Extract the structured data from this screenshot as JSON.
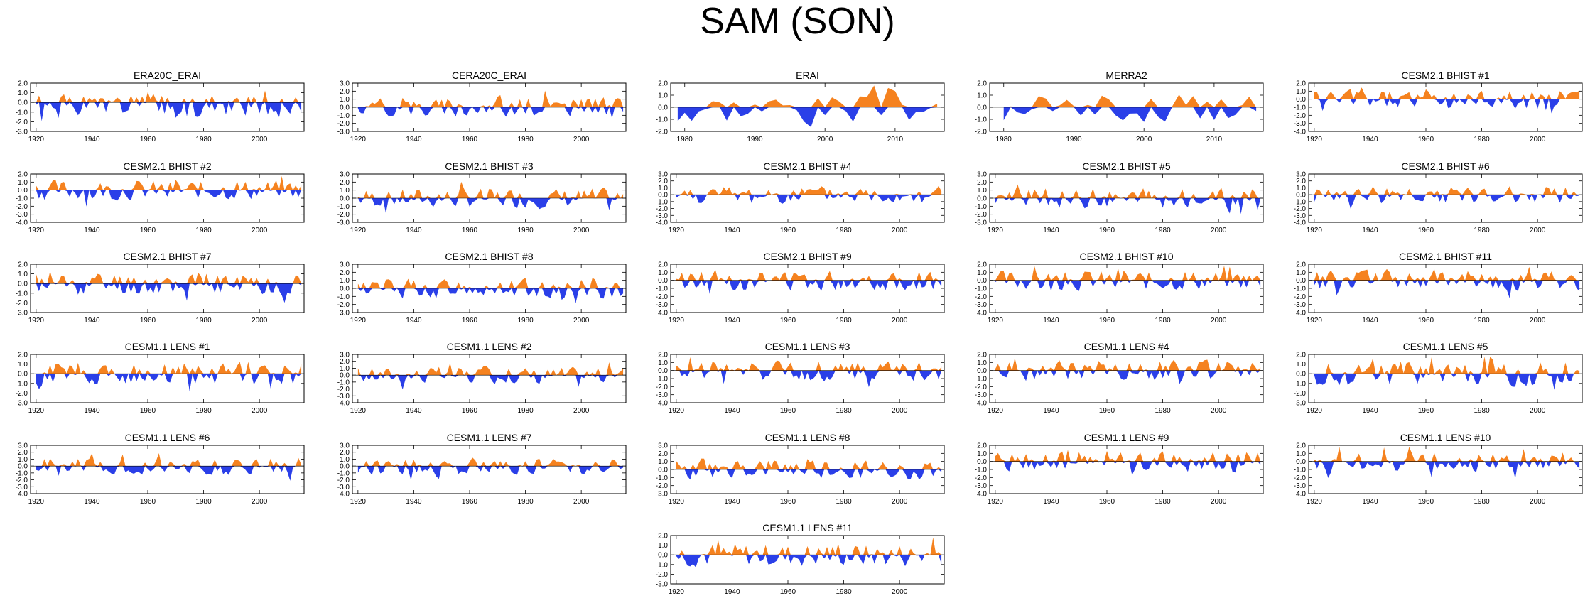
{
  "title": "SAM (SON)",
  "colors": {
    "positive": "#f5821f",
    "negative": "#2a3fe8",
    "axis": "#000000"
  },
  "chart_data": [
    {
      "type": "area",
      "title": "ERA20C_ERAI",
      "x_ticks": [
        "1920",
        "1940",
        "1960",
        "1980",
        "2000"
      ],
      "xlim": [
        1918,
        2016
      ],
      "y_ticks": [
        "2.0",
        "1.0",
        "0.0",
        "-1.0",
        "-2.0",
        "-3.0"
      ],
      "ylim": [
        -3,
        2
      ],
      "series_span": [
        1920,
        2015
      ],
      "seed": 1,
      "bias": -0.35
    },
    {
      "type": "area",
      "title": "CERA20C_ERAI",
      "x_ticks": [
        "1920",
        "1940",
        "1960",
        "1980",
        "2000"
      ],
      "xlim": [
        1918,
        2016
      ],
      "y_ticks": [
        "3.0",
        "2.0",
        "1.0",
        "0.0",
        "-1.0",
        "-2.0",
        "-3.0"
      ],
      "ylim": [
        -3,
        3
      ],
      "series_span": [
        1920,
        2015
      ],
      "seed": 2,
      "bias": 0.1
    },
    {
      "type": "area",
      "title": "ERAI",
      "x_ticks": [
        "1980",
        "1990",
        "2000",
        "2010"
      ],
      "xlim": [
        1978,
        2017
      ],
      "y_ticks": [
        "2.0",
        "1.0",
        "0.0",
        "-1.0",
        "-2.0"
      ],
      "ylim": [
        -2,
        2
      ],
      "series_span": [
        1979,
        2016
      ],
      "seed": 3,
      "bias": 0
    },
    {
      "type": "area",
      "title": "MERRA2",
      "x_ticks": [
        "1980",
        "1990",
        "2000",
        "2010"
      ],
      "xlim": [
        1978,
        2017
      ],
      "y_ticks": [
        "2.0",
        "1.0",
        "0.0",
        "-1.0",
        "-2.0"
      ],
      "ylim": [
        -2,
        2
      ],
      "series_span": [
        1980,
        2016
      ],
      "seed": 4,
      "bias": 0
    },
    {
      "type": "area",
      "title": "CESM2.1 BHIST #1",
      "x_ticks": [
        "1920",
        "1940",
        "1960",
        "1980",
        "2000"
      ],
      "xlim": [
        1918,
        2016
      ],
      "y_ticks": [
        "2.0",
        "1.0",
        "0.0",
        "-1.0",
        "-2.0",
        "-3.0",
        "-4.0"
      ],
      "ylim": [
        -4,
        2
      ],
      "series_span": [
        1920,
        2015
      ],
      "seed": 5,
      "bias": 0
    },
    {
      "type": "area",
      "title": "CESM2.1 BHIST #2",
      "x_ticks": [
        "1920",
        "1940",
        "1960",
        "1980",
        "2000"
      ],
      "xlim": [
        1918,
        2016
      ],
      "y_ticks": [
        "2.0",
        "1.0",
        "0.0",
        "-1.0",
        "-2.0",
        "-3.0",
        "-4.0"
      ],
      "ylim": [
        -4,
        2
      ],
      "series_span": [
        1920,
        2015
      ],
      "seed": 6,
      "bias": 0
    },
    {
      "type": "area",
      "title": "CESM2.1 BHIST #3",
      "x_ticks": [
        "1920",
        "1940",
        "1960",
        "1980",
        "2000"
      ],
      "xlim": [
        1918,
        2016
      ],
      "y_ticks": [
        "3.0",
        "2.0",
        "1.0",
        "0.0",
        "-1.0",
        "-2.0",
        "-3.0"
      ],
      "ylim": [
        -3,
        3
      ],
      "series_span": [
        1920,
        2015
      ],
      "seed": 7,
      "bias": 0
    },
    {
      "type": "area",
      "title": "CESM2.1 BHIST #4",
      "x_ticks": [
        "1920",
        "1940",
        "1960",
        "1980",
        "2000"
      ],
      "xlim": [
        1918,
        2016
      ],
      "y_ticks": [
        "3.0",
        "2.0",
        "1.0",
        "0.0",
        "-1.0",
        "-2.0",
        "-3.0",
        "-4.0"
      ],
      "ylim": [
        -4,
        3
      ],
      "series_span": [
        1920,
        2015
      ],
      "seed": 8,
      "bias": 0
    },
    {
      "type": "area",
      "title": "CESM2.1 BHIST #5",
      "x_ticks": [
        "1920",
        "1940",
        "1960",
        "1980",
        "2000"
      ],
      "xlim": [
        1918,
        2016
      ],
      "y_ticks": [
        "3.0",
        "2.0",
        "1.0",
        "0.0",
        "-1.0",
        "-2.0",
        "-3.0"
      ],
      "ylim": [
        -3,
        3
      ],
      "series_span": [
        1920,
        2015
      ],
      "seed": 9,
      "bias": 0
    },
    {
      "type": "area",
      "title": "CESM2.1 BHIST #6",
      "x_ticks": [
        "1920",
        "1940",
        "1960",
        "1980",
        "2000"
      ],
      "xlim": [
        1918,
        2016
      ],
      "y_ticks": [
        "3.0",
        "2.0",
        "1.0",
        "0.0",
        "-1.0",
        "-2.0",
        "-3.0",
        "-4.0"
      ],
      "ylim": [
        -4,
        3
      ],
      "series_span": [
        1920,
        2015
      ],
      "seed": 10,
      "bias": 0
    },
    {
      "type": "area",
      "title": "CESM2.1 BHIST #7",
      "x_ticks": [
        "1920",
        "1940",
        "1960",
        "1980",
        "2000"
      ],
      "xlim": [
        1918,
        2016
      ],
      "y_ticks": [
        "2.0",
        "1.0",
        "0.0",
        "-1.0",
        "-2.0",
        "-3.0"
      ],
      "ylim": [
        -3,
        2
      ],
      "series_span": [
        1920,
        2015
      ],
      "seed": 11,
      "bias": 0
    },
    {
      "type": "area",
      "title": "CESM2.1 BHIST #8",
      "x_ticks": [
        "1920",
        "1940",
        "1960",
        "1980",
        "2000"
      ],
      "xlim": [
        1918,
        2016
      ],
      "y_ticks": [
        "3.0",
        "2.0",
        "1.0",
        "0.0",
        "-1.0",
        "-2.0",
        "-3.0"
      ],
      "ylim": [
        -3,
        3
      ],
      "series_span": [
        1920,
        2015
      ],
      "seed": 12,
      "bias": 0
    },
    {
      "type": "area",
      "title": "CESM2.1 BHIST #9",
      "x_ticks": [
        "1920",
        "1940",
        "1960",
        "1980",
        "2000"
      ],
      "xlim": [
        1918,
        2016
      ],
      "y_ticks": [
        "2.0",
        "1.0",
        "0.0",
        "-1.0",
        "-2.0",
        "-3.0",
        "-4.0"
      ],
      "ylim": [
        -4,
        2
      ],
      "series_span": [
        1920,
        2015
      ],
      "seed": 13,
      "bias": 0
    },
    {
      "type": "area",
      "title": "CESM2.1 BHIST #10",
      "x_ticks": [
        "1920",
        "1940",
        "1960",
        "1980",
        "2000"
      ],
      "xlim": [
        1918,
        2016
      ],
      "y_ticks": [
        "2.0",
        "1.0",
        "0.0",
        "-1.0",
        "-2.0",
        "-3.0",
        "-4.0"
      ],
      "ylim": [
        -4,
        2
      ],
      "series_span": [
        1920,
        2015
      ],
      "seed": 14,
      "bias": 0
    },
    {
      "type": "area",
      "title": "CESM2.1 BHIST #11",
      "x_ticks": [
        "1920",
        "1940",
        "1960",
        "1980",
        "2000"
      ],
      "xlim": [
        1918,
        2016
      ],
      "y_ticks": [
        "2.0",
        "1.0",
        "0.0",
        "-1.0",
        "-2.0",
        "-3.0",
        "-4.0"
      ],
      "ylim": [
        -4,
        2
      ],
      "series_span": [
        1920,
        2015
      ],
      "seed": 15,
      "bias": 0
    },
    {
      "type": "area",
      "title": "CESM1.1 LENS #1",
      "x_ticks": [
        "1920",
        "1940",
        "1960",
        "1980",
        "2000"
      ],
      "xlim": [
        1918,
        2016
      ],
      "y_ticks": [
        "2.0",
        "1.0",
        "0.0",
        "-1.0",
        "-2.0",
        "-3.0"
      ],
      "ylim": [
        -3,
        2
      ],
      "series_span": [
        1920,
        2015
      ],
      "seed": 16,
      "bias": 0
    },
    {
      "type": "area",
      "title": "CESM1.1 LENS #2",
      "x_ticks": [
        "1920",
        "1940",
        "1960",
        "1980",
        "2000"
      ],
      "xlim": [
        1918,
        2016
      ],
      "y_ticks": [
        "3.0",
        "2.0",
        "1.0",
        "0.0",
        "-1.0",
        "-2.0",
        "-3.0",
        "-4.0"
      ],
      "ylim": [
        -4,
        3
      ],
      "series_span": [
        1920,
        2015
      ],
      "seed": 17,
      "bias": 0
    },
    {
      "type": "area",
      "title": "CESM1.1 LENS #3",
      "x_ticks": [
        "1920",
        "1940",
        "1960",
        "1980",
        "2000"
      ],
      "xlim": [
        1918,
        2016
      ],
      "y_ticks": [
        "2.0",
        "1.0",
        "0.0",
        "-1.0",
        "-2.0",
        "-3.0",
        "-4.0"
      ],
      "ylim": [
        -4,
        2
      ],
      "series_span": [
        1920,
        2015
      ],
      "seed": 18,
      "bias": 0
    },
    {
      "type": "area",
      "title": "CESM1.1 LENS #4",
      "x_ticks": [
        "1920",
        "1940",
        "1960",
        "1980",
        "2000"
      ],
      "xlim": [
        1918,
        2016
      ],
      "y_ticks": [
        "2.0",
        "1.0",
        "0.0",
        "-1.0",
        "-2.0",
        "-3.0",
        "-4.0"
      ],
      "ylim": [
        -4,
        2
      ],
      "series_span": [
        1920,
        2015
      ],
      "seed": 19,
      "bias": 0
    },
    {
      "type": "area",
      "title": "CESM1.1 LENS #5",
      "x_ticks": [
        "1920",
        "1940",
        "1960",
        "1980",
        "2000"
      ],
      "xlim": [
        1918,
        2016
      ],
      "y_ticks": [
        "2.0",
        "1.0",
        "0.0",
        "-1.0",
        "-2.0",
        "-3.0"
      ],
      "ylim": [
        -3,
        2
      ],
      "series_span": [
        1920,
        2015
      ],
      "seed": 20,
      "bias": 0
    },
    {
      "type": "area",
      "title": "CESM1.1 LENS #6",
      "x_ticks": [
        "1920",
        "1940",
        "1960",
        "1980",
        "2000"
      ],
      "xlim": [
        1918,
        2016
      ],
      "y_ticks": [
        "3.0",
        "2.0",
        "1.0",
        "0.0",
        "-1.0",
        "-2.0",
        "-3.0",
        "-4.0"
      ],
      "ylim": [
        -4,
        3
      ],
      "series_span": [
        1920,
        2015
      ],
      "seed": 21,
      "bias": 0
    },
    {
      "type": "area",
      "title": "CESM1.1 LENS #7",
      "x_ticks": [
        "1920",
        "1940",
        "1960",
        "1980",
        "2000"
      ],
      "xlim": [
        1918,
        2016
      ],
      "y_ticks": [
        "3.0",
        "2.0",
        "1.0",
        "0.0",
        "-1.0",
        "-2.0",
        "-3.0",
        "-4.0"
      ],
      "ylim": [
        -4,
        3
      ],
      "series_span": [
        1920,
        2015
      ],
      "seed": 22,
      "bias": 0
    },
    {
      "type": "area",
      "title": "CESM1.1 LENS #8",
      "x_ticks": [
        "1920",
        "1940",
        "1960",
        "1980",
        "2000"
      ],
      "xlim": [
        1918,
        2016
      ],
      "y_ticks": [
        "3.0",
        "2.0",
        "1.0",
        "0.0",
        "-1.0",
        "-2.0",
        "-3.0"
      ],
      "ylim": [
        -3,
        3
      ],
      "series_span": [
        1920,
        2015
      ],
      "seed": 23,
      "bias": 0
    },
    {
      "type": "area",
      "title": "CESM1.1 LENS #9",
      "x_ticks": [
        "1920",
        "1940",
        "1960",
        "1980",
        "2000"
      ],
      "xlim": [
        1918,
        2016
      ],
      "y_ticks": [
        "2.0",
        "1.0",
        "0.0",
        "-1.0",
        "-2.0",
        "-3.0",
        "-4.0"
      ],
      "ylim": [
        -4,
        2
      ],
      "series_span": [
        1920,
        2015
      ],
      "seed": 24,
      "bias": 0
    },
    {
      "type": "area",
      "title": "CESM1.1 LENS #10",
      "x_ticks": [
        "1920",
        "1940",
        "1960",
        "1980",
        "2000"
      ],
      "xlim": [
        1918,
        2016
      ],
      "y_ticks": [
        "2.0",
        "1.0",
        "0.0",
        "-1.0",
        "-2.0",
        "-3.0",
        "-4.0"
      ],
      "ylim": [
        -4,
        2
      ],
      "series_span": [
        1920,
        2015
      ],
      "seed": 25,
      "bias": 0
    },
    {
      "type": "area",
      "title": "CESM1.1 LENS #11",
      "x_ticks": [
        "1920",
        "1940",
        "1960",
        "1980",
        "2000"
      ],
      "xlim": [
        1918,
        2016
      ],
      "y_ticks": [
        "2.0",
        "1.0",
        "0.0",
        "-1.0",
        "-2.0",
        "-3.0"
      ],
      "ylim": [
        -3,
        2
      ],
      "series_span": [
        1920,
        2015
      ],
      "seed": 26,
      "bias": 0
    }
  ]
}
